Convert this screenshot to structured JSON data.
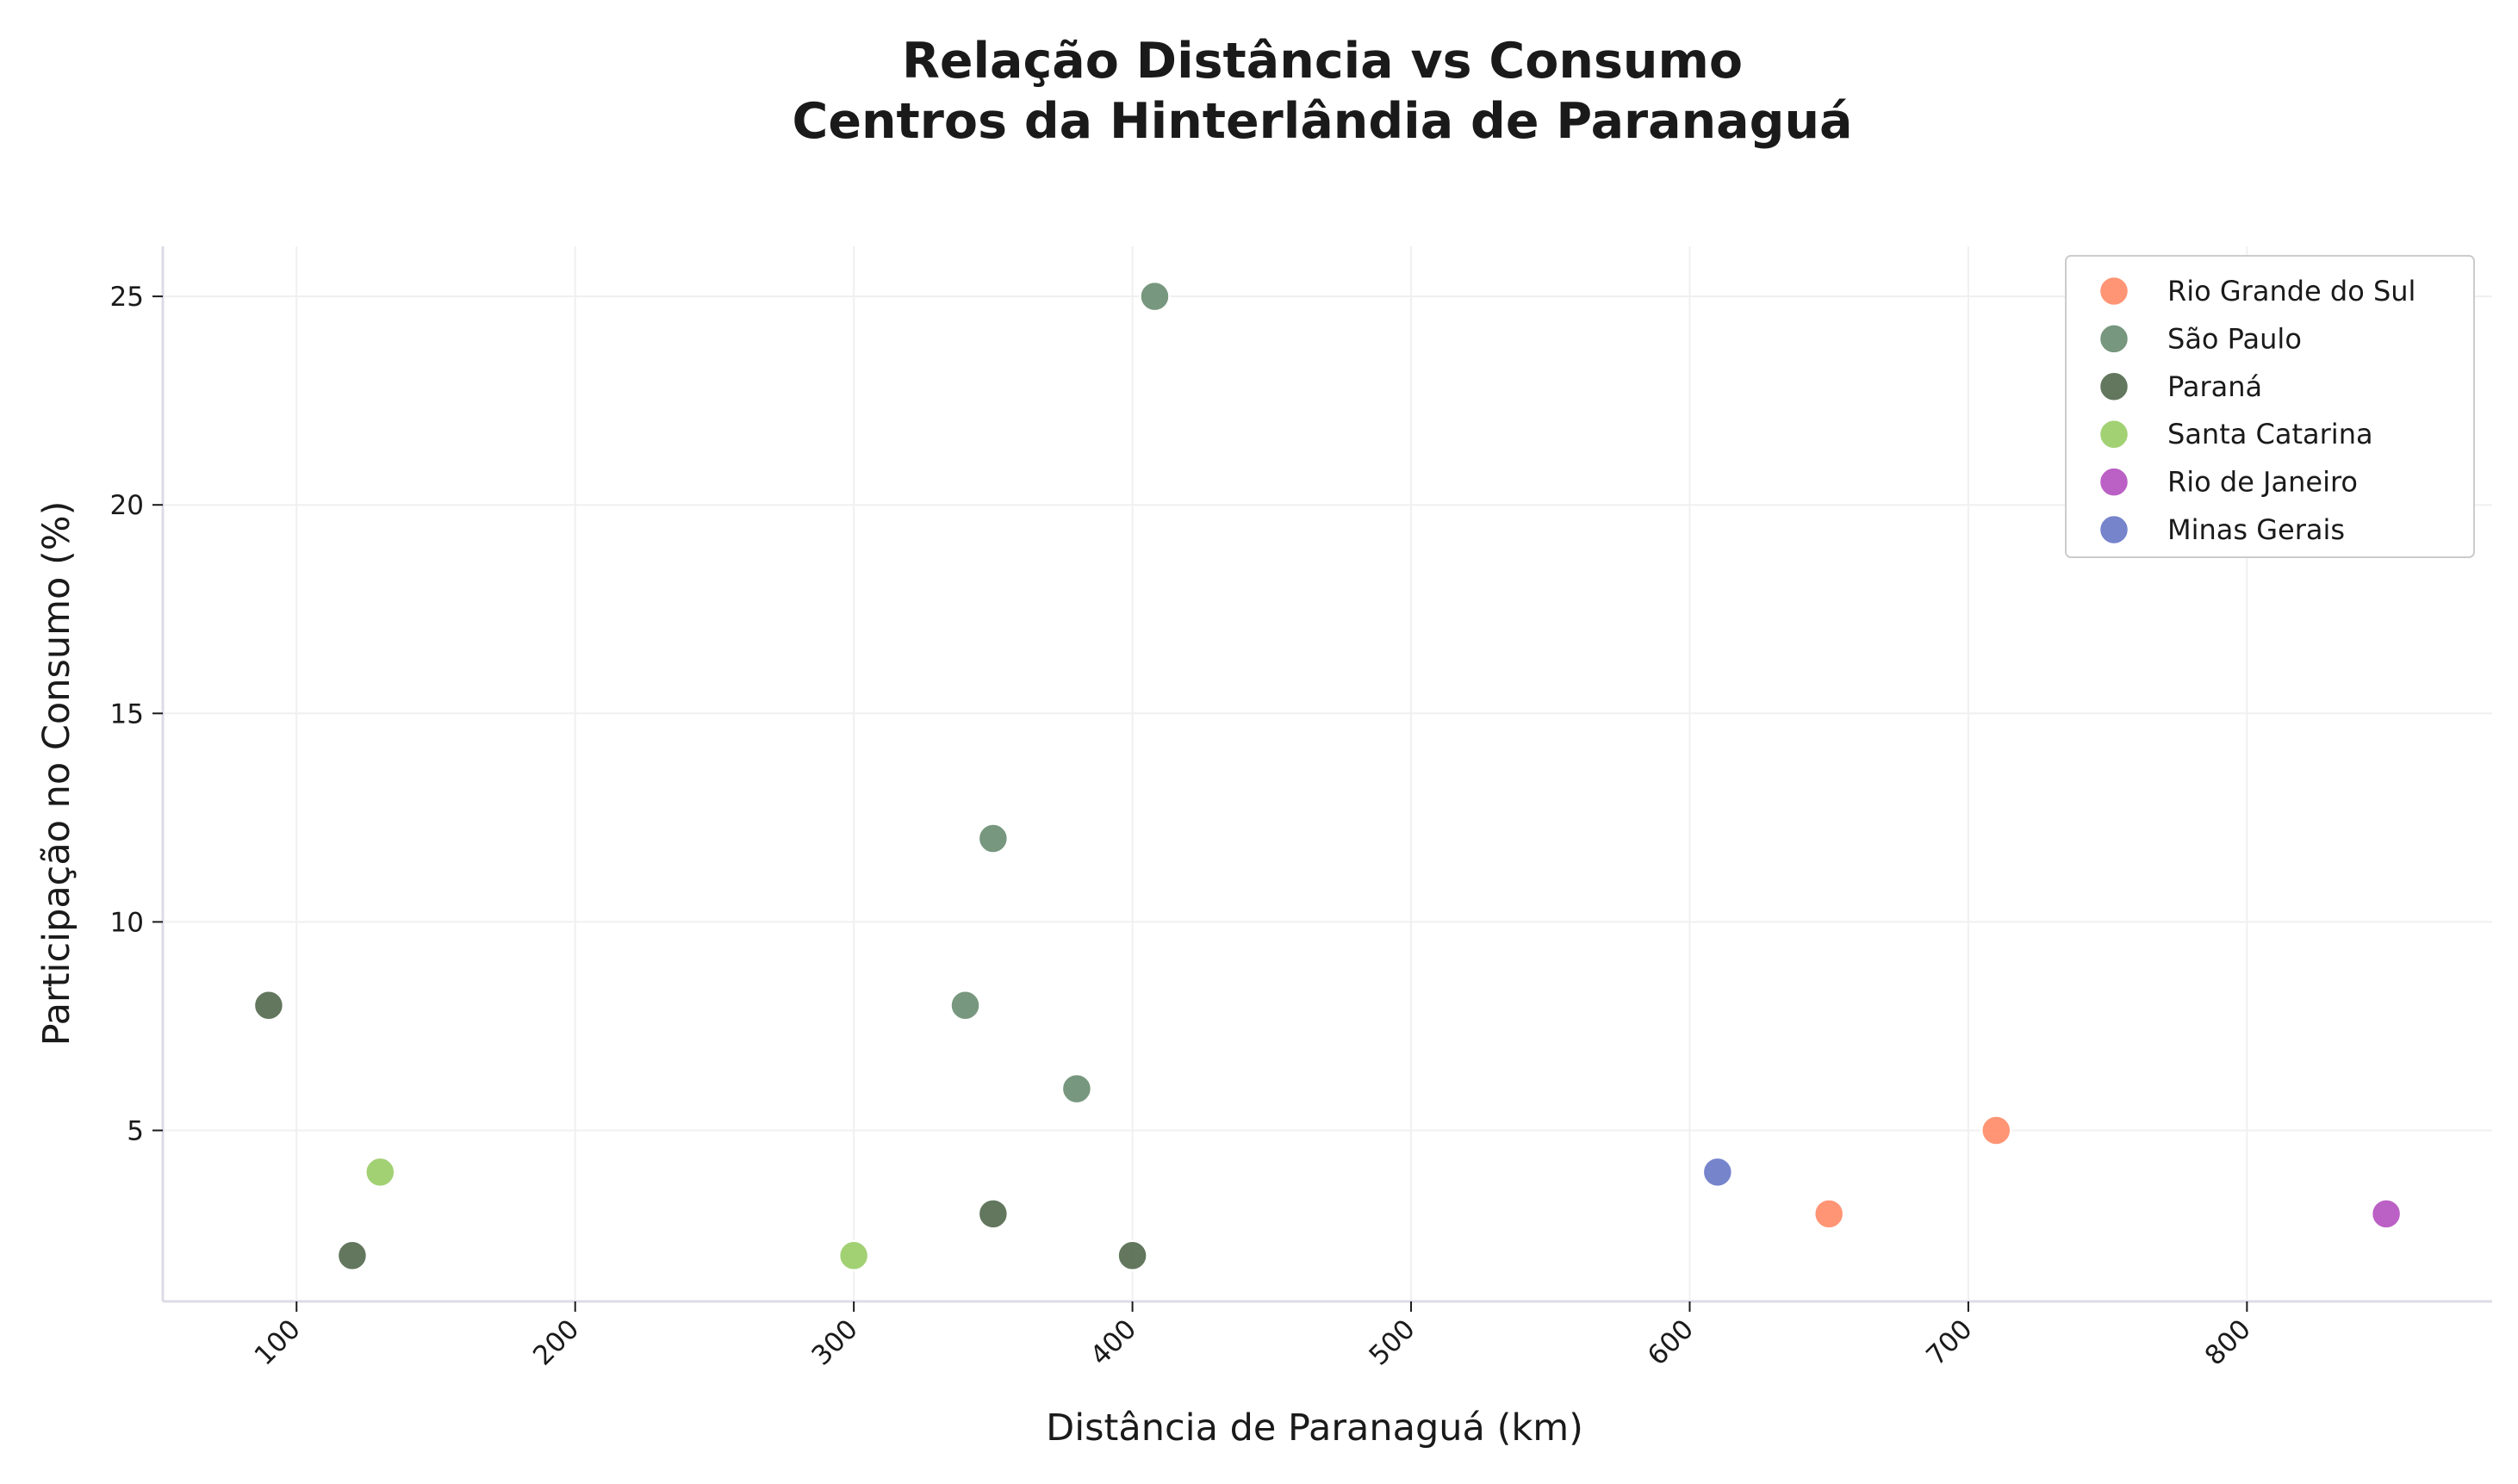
{
  "chart_data": {
    "type": "scatter",
    "title_line1": "Relação Distância vs Consumo",
    "title_line2": "Centros da Hinterlândia de Paranaguá",
    "xlabel": "Distância de Paranaguá (km)",
    "ylabel": "Participação no Consumo (%)",
    "xlim": [
      52,
      888
    ],
    "ylim": [
      0.9,
      26.2
    ],
    "xticks": [
      100,
      200,
      300,
      400,
      500,
      600,
      700,
      800
    ],
    "yticks": [
      5,
      10,
      15,
      20,
      25
    ],
    "grid": true,
    "legend_position": "top-right",
    "series": [
      {
        "name": "Rio Grande do Sul",
        "color": "#FF8C69",
        "points": [
          [
            650,
            3
          ],
          [
            710,
            5
          ]
        ]
      },
      {
        "name": "São Paulo",
        "color": "#6B8E73",
        "points": [
          [
            408,
            25
          ],
          [
            350,
            12
          ],
          [
            340,
            8
          ],
          [
            380,
            6
          ]
        ]
      },
      {
        "name": "Paraná",
        "color": "#556B4F",
        "points": [
          [
            90,
            8
          ],
          [
            120,
            2
          ],
          [
            350,
            3
          ],
          [
            400,
            2
          ]
        ]
      },
      {
        "name": "Santa Catarina",
        "color": "#9ACD68",
        "points": [
          [
            130,
            4
          ],
          [
            300,
            2
          ]
        ]
      },
      {
        "name": "Rio de Janeiro",
        "color": "#B553C0",
        "points": [
          [
            850,
            3
          ]
        ]
      },
      {
        "name": "Minas Gerais",
        "color": "#6A7AC8",
        "points": [
          [
            610,
            4
          ]
        ]
      }
    ]
  }
}
